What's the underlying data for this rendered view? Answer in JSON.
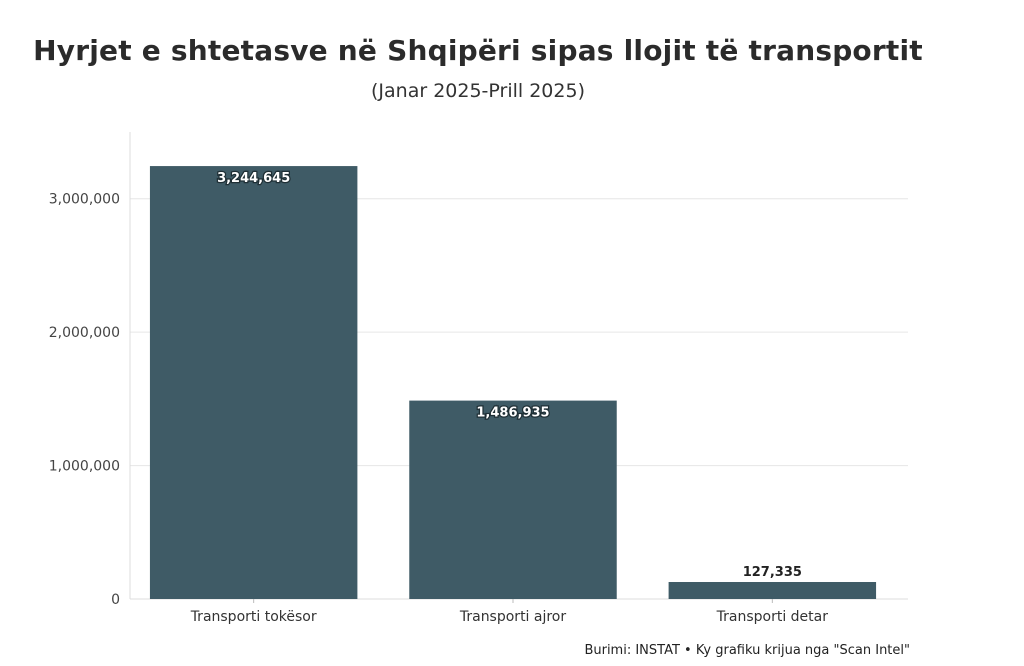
{
  "chart_data": {
    "type": "bar",
    "title": "Hyrjet e shtetasve në Shqipëri sipas llojit të transportit",
    "subtitle": "(Janar 2025-Prill 2025)",
    "categories": [
      "Transporti tokësor",
      "Transporti ajror",
      "Transporti detar"
    ],
    "values": [
      3244645,
      1486935,
      127335
    ],
    "value_labels": [
      "3,244,645",
      "1,486,935",
      "127,335"
    ],
    "xlabel": "",
    "ylabel": "",
    "ylim": [
      0,
      3500000
    ],
    "yticks": [
      0,
      1000000,
      2000000,
      3000000
    ],
    "ytick_labels": [
      "0",
      "1,000,000",
      "2,000,000",
      "3,000,000"
    ],
    "grid": true,
    "bar_color": "#3f5b66"
  },
  "source_text": "Burimi: INSTAT • Ky grafiku krijua nga \"Scan Intel\""
}
